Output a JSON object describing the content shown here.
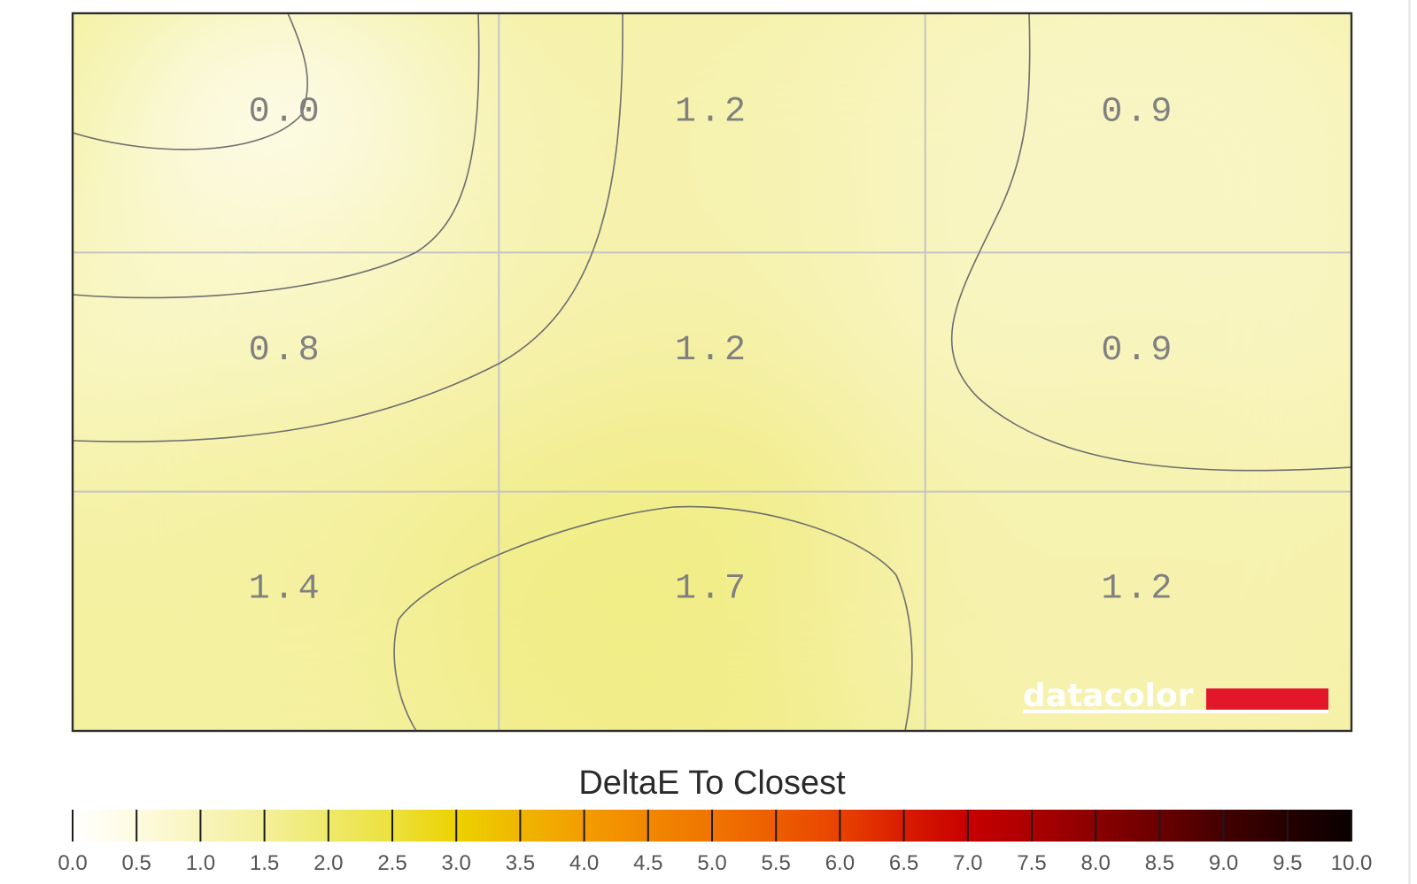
{
  "chart_data": {
    "type": "heatmap",
    "title": "DeltaE To Closest",
    "rows": 3,
    "cols": 3,
    "values": [
      [
        0.0,
        1.2,
        0.9
      ],
      [
        0.8,
        1.2,
        0.9
      ],
      [
        1.4,
        1.7,
        1.2
      ]
    ],
    "value_labels": [
      [
        "0.0",
        "1.2",
        "0.9"
      ],
      [
        "0.8",
        "1.2",
        "0.9"
      ],
      [
        "1.4",
        "1.7",
        "1.2"
      ]
    ],
    "color_scale": {
      "min": 0,
      "max": 10,
      "tick_labels": [
        "0.0",
        "0.5",
        "1.0",
        "1.5",
        "2.0",
        "2.5",
        "3.0",
        "3.5",
        "4.0",
        "4.5",
        "5.0",
        "5.5",
        "6.0",
        "6.5",
        "7.0",
        "7.5",
        "8.0",
        "8.5",
        "9.0",
        "9.5",
        "10.0"
      ],
      "colors": [
        "#ffffff",
        "#fdfbe0",
        "#f8f4bc",
        "#f3f09a",
        "#eee96a",
        "#ece13e",
        "#ecd200",
        "#f0b600",
        "#f39c00",
        "#f18700",
        "#ef7400",
        "#ec5d00",
        "#e84200",
        "#d81c00",
        "#c80000",
        "#ab0000",
        "#8a0000",
        "#6a0000",
        "#420000",
        "#250000",
        "#0a0000"
      ]
    },
    "grid": true
  },
  "branding": {
    "logo_text": "datacolor",
    "logo_color": "#e2182a"
  }
}
